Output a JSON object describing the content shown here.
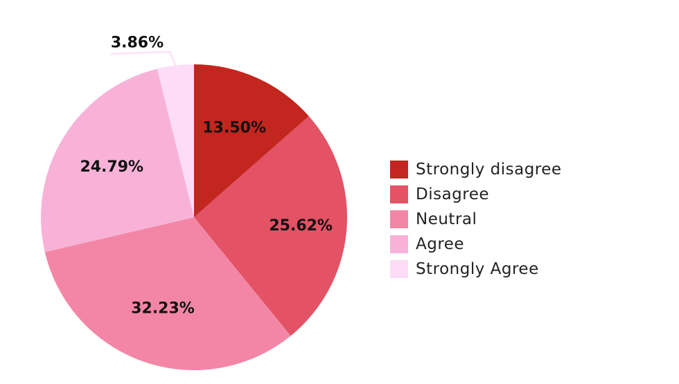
{
  "chart_data": {
    "type": "pie",
    "categories": [
      "Strongly disagree",
      "Disagree",
      "Neutral",
      "Agree",
      "Strongly Agree"
    ],
    "values": [
      13.5,
      25.62,
      32.23,
      24.79,
      3.86
    ],
    "labels": [
      "13.50%",
      "25.62%",
      "32.23%",
      "24.79%",
      "3.86%"
    ],
    "colors": [
      "#c3261f",
      "#e35265",
      "#f386a6",
      "#f8b2d8",
      "#fcdcf6"
    ],
    "title": "",
    "legend": "right",
    "start_angle": "12 o'clock",
    "direction": "clockwise"
  }
}
